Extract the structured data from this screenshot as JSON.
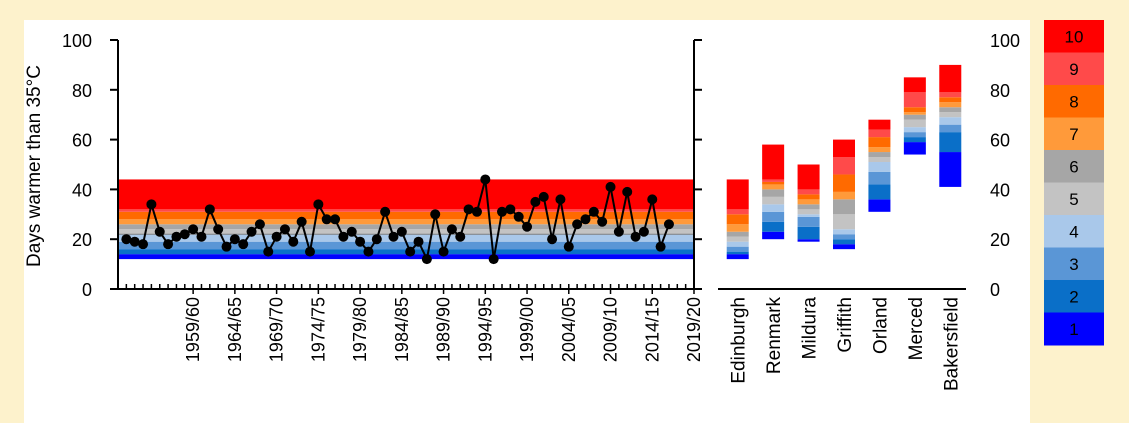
{
  "ylabel": "Days warmer than 35°C",
  "colors": {
    "band_1": "#0000ff",
    "band_2": "#0a6fc8",
    "band_3": "#5a96d6",
    "band_4": "#a9c8ea",
    "band_5": "#c3c3c3",
    "band_6": "#a6a6a6",
    "band_7": "#ff9a3a",
    "band_8": "#ff6a00",
    "band_9": "#ff4a4a",
    "band_10": "#ff0000",
    "background": "#fdf2cc"
  },
  "chart_data": [
    {
      "type": "line",
      "ylim": [
        0,
        100
      ],
      "yticks": [
        0,
        20,
        40,
        60,
        80,
        100
      ],
      "x_tick_labels": [
        "1959/60",
        "1964/65",
        "1969/70",
        "1974/75",
        "1979/80",
        "1984/85",
        "1989/90",
        "1994/95",
        "1999/00",
        "2004/05",
        "2009/10",
        "2014/15",
        "2019/20"
      ],
      "x_tick_positions": [
        1959,
        1964,
        1969,
        1974,
        1979,
        1984,
        1989,
        1994,
        1999,
        2004,
        2009,
        2014,
        2019
      ],
      "xlim": [
        1950,
        2019
      ],
      "band_bounds": [
        12,
        14,
        16,
        19,
        22,
        24,
        26,
        28,
        31,
        32,
        44
      ],
      "x": [
        1951,
        1952,
        1953,
        1954,
        1955,
        1956,
        1957,
        1958,
        1959,
        1960,
        1961,
        1962,
        1963,
        1964,
        1965,
        1966,
        1967,
        1968,
        1969,
        1970,
        1971,
        1972,
        1973,
        1974,
        1975,
        1976,
        1977,
        1978,
        1979,
        1980,
        1981,
        1982,
        1983,
        1984,
        1985,
        1986,
        1987,
        1988,
        1989,
        1990,
        1991,
        1992,
        1993,
        1994,
        1995,
        1996,
        1997,
        1998,
        1999,
        2000,
        2001,
        2002,
        2003,
        2004,
        2005,
        2006,
        2007,
        2008,
        2009,
        2010,
        2011,
        2012,
        2013,
        2014,
        2015,
        2016
      ],
      "y": [
        20,
        19,
        18,
        34,
        23,
        18,
        21,
        22,
        24,
        21,
        32,
        24,
        17,
        20,
        18,
        23,
        26,
        15,
        21,
        24,
        19,
        27,
        15,
        34,
        28,
        28,
        21,
        23,
        19,
        15,
        20,
        31,
        21,
        23,
        15,
        19,
        12,
        30,
        15,
        24,
        21,
        32,
        31,
        44,
        12,
        31,
        32,
        29,
        25,
        35,
        37,
        20,
        36,
        17,
        26,
        28,
        31,
        27,
        41,
        23,
        39,
        21,
        23,
        36,
        17,
        26
      ]
    },
    {
      "type": "bar",
      "categories": [
        "Edinburgh",
        "Renmark",
        "Mildura",
        "Griffith",
        "Orland",
        "Merced",
        "Bakersfield"
      ],
      "ylim": [
        0,
        100
      ],
      "yticks": [
        0,
        20,
        40,
        60,
        80,
        100
      ],
      "stack_bounds": [
        [
          12,
          14,
          15,
          17,
          19,
          21,
          23,
          26,
          30,
          32,
          44
        ],
        [
          20,
          23,
          27,
          31,
          34,
          37,
          40,
          42,
          43,
          44,
          58
        ],
        [
          19,
          20,
          25,
          29,
          30,
          32,
          34,
          36,
          38,
          40,
          50
        ],
        [
          16,
          18,
          20,
          22,
          24,
          30,
          36,
          39,
          46,
          53,
          60
        ],
        [
          31,
          36,
          42,
          47,
          51,
          53,
          55,
          57,
          61,
          64,
          68
        ],
        [
          54,
          59,
          61,
          63,
          65,
          68,
          70,
          71,
          73,
          79,
          85
        ],
        [
          41,
          55,
          63,
          66,
          69,
          71,
          73,
          75,
          77,
          79,
          90
        ]
      ]
    },
    {
      "type": "legend",
      "labels": [
        "10",
        "9",
        "8",
        "7",
        "6",
        "5",
        "4",
        "3",
        "2",
        "1"
      ]
    }
  ]
}
